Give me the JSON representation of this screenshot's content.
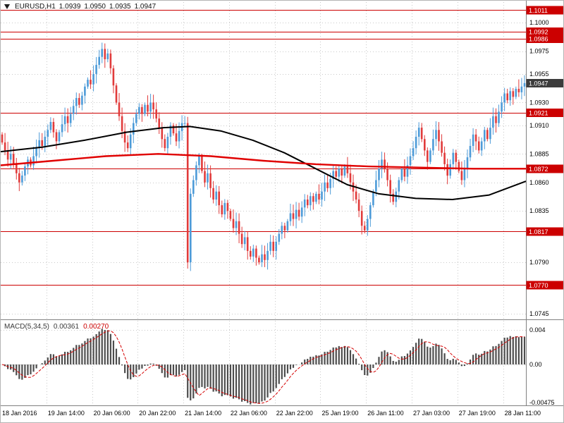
{
  "header": {
    "symbol_period": "EURUSD,H1",
    "open": "1.0939",
    "high": "1.0950",
    "low": "1.0935",
    "close": "1.0947"
  },
  "indicator": {
    "name": "MACD(5,34,5)",
    "value_main": "0.00361",
    "value_signal": "0.00270"
  },
  "colors": {
    "up_candle": "#4d9bd8",
    "down_candle": "#e13b3b",
    "ma_red": "#e00000",
    "ma_black": "#000000",
    "level_line": "#cc0000",
    "level_tag_bg": "#cc0000",
    "current_tag_bg": "#3c3c3c",
    "macd_bar": "#4d4d4d",
    "macd_signal": "#d40000",
    "grid": "#c9c9c9",
    "pane_border": "#808080",
    "text": "#000000",
    "background": "#ffffff"
  },
  "chart_data": {
    "type": "candlestick",
    "symbol": "EURUSD",
    "timeframe": "H1",
    "grid": "dotted",
    "price_axis": {
      "visible_ticks": [
        {
          "label": "1.1000",
          "value": 1.1
        },
        {
          "label": "1.0975",
          "value": 1.0975
        },
        {
          "label": "1.0955",
          "value": 1.0955
        },
        {
          "label": "1.0930",
          "value": 1.093
        },
        {
          "label": "1.0910",
          "value": 1.091
        },
        {
          "label": "1.0885",
          "value": 1.0885
        },
        {
          "label": "1.0860",
          "value": 1.086
        },
        {
          "label": "1.0835",
          "value": 1.0835
        },
        {
          "label": "1.0790",
          "value": 1.079
        },
        {
          "label": "1.0745",
          "value": 1.0745
        }
      ],
      "range": [
        1.074,
        1.1018
      ]
    },
    "time_axis": [
      {
        "label": "18 Jan 2016",
        "index": 0
      },
      {
        "label": "19 Jan 14:00",
        "index": 16
      },
      {
        "label": "20 Jan 06:00",
        "index": 32
      },
      {
        "label": "20 Jan 22:00",
        "index": 48
      },
      {
        "label": "21 Jan 14:00",
        "index": 64
      },
      {
        "label": "22 Jan 06:00",
        "index": 80
      },
      {
        "label": "22 Jan 22:00",
        "index": 96
      },
      {
        "label": "25 Jan 19:00",
        "index": 112
      },
      {
        "label": "26 Jan 11:00",
        "index": 128
      },
      {
        "label": "27 Jan 03:00",
        "index": 144
      },
      {
        "label": "27 Jan 19:00",
        "index": 160
      },
      {
        "label": "28 Jan 11:00",
        "index": 176
      }
    ],
    "levels": [
      {
        "label": "1.1011",
        "value": 1.1011
      },
      {
        "label": "1.0992",
        "value": 1.0992
      },
      {
        "label": "1.0986",
        "value": 1.0986
      },
      {
        "label": "1.0921",
        "value": 1.0921
      },
      {
        "label": "1.0872",
        "value": 1.0872
      },
      {
        "label": "1.0817",
        "value": 1.0817
      },
      {
        "label": "1.0770",
        "value": 1.077
      }
    ],
    "current_price": {
      "label": "1.0947",
      "value": 1.0947
    },
    "first_open": 1.0902,
    "closes": [
      1.0895,
      1.0888,
      1.088,
      1.0885,
      1.0876,
      1.0868,
      1.086,
      1.0866,
      1.0874,
      1.088,
      1.0875,
      1.0883,
      1.089,
      1.0897,
      1.0892,
      1.09,
      1.0906,
      1.0913,
      1.0904,
      1.0896,
      1.0904,
      1.0911,
      1.0918,
      1.0912,
      1.092,
      1.0927,
      1.0934,
      1.0928,
      1.0936,
      1.0944,
      1.095,
      1.0946,
      1.0955,
      1.0963,
      1.097,
      1.0977,
      1.0968,
      1.0973,
      1.096,
      1.0945,
      1.093,
      1.0918,
      1.0905,
      1.0895,
      1.089,
      1.0902,
      1.0912,
      1.092,
      1.0926,
      1.092,
      1.0928,
      1.0922,
      1.093,
      1.0924,
      1.0916,
      1.0908,
      1.0898,
      1.089,
      1.09,
      1.091,
      1.0903,
      1.0896,
      1.0905,
      1.0912,
      1.0912,
      1.079,
      1.085,
      1.0862,
      1.0875,
      1.0883,
      1.087,
      1.086,
      1.0868,
      1.0855,
      1.0845,
      1.0852,
      1.084,
      1.0832,
      1.0842,
      1.0835,
      1.0828,
      1.082,
      1.0826,
      1.0815,
      1.0806,
      1.0812,
      1.08,
      1.0795,
      1.0802,
      1.0794,
      1.079,
      1.0797,
      1.0792,
      1.08,
      1.0808,
      1.08,
      1.0808,
      1.0815,
      1.0822,
      1.0818,
      1.0826,
      1.0833,
      1.0828,
      1.0836,
      1.083,
      1.0838,
      1.0845,
      1.084,
      1.0848,
      1.0843,
      1.085,
      1.0845,
      1.0852,
      1.086,
      1.0855,
      1.0863,
      1.087,
      1.0865,
      1.0872,
      1.0866,
      1.0874,
      1.0868,
      1.086,
      1.0852,
      1.0845,
      1.0835,
      1.0822,
      1.0818,
      1.0828,
      1.084,
      1.0852,
      1.0862,
      1.0872,
      1.088,
      1.0872,
      1.0862,
      1.085,
      1.0843,
      1.0852,
      1.0862,
      1.0872,
      1.0865,
      1.0875,
      1.0883,
      1.089,
      1.09,
      1.0908,
      1.0898,
      1.0888,
      1.0878,
      1.0888,
      1.0898,
      1.0906,
      1.0896,
      1.0886,
      1.0876,
      1.0866,
      1.0876,
      1.0886,
      1.0878,
      1.087,
      1.0862,
      1.0872,
      1.0882,
      1.0892,
      1.0902,
      1.0896,
      1.0888,
      1.0896,
      1.0906,
      1.0898,
      1.0908,
      1.0918,
      1.0912,
      1.0922,
      1.093,
      1.0938,
      1.0932,
      1.094,
      1.0935,
      1.0942,
      1.0939,
      1.0944,
      1.0947
    ],
    "ma_red_points": [
      [
        0.0,
        1.0875
      ],
      [
        0.1,
        1.0879
      ],
      [
        0.2,
        1.0883
      ],
      [
        0.3,
        1.0885
      ],
      [
        0.4,
        1.0883
      ],
      [
        0.5,
        1.0879
      ],
      [
        0.6,
        1.0876
      ],
      [
        0.7,
        1.0874
      ],
      [
        0.8,
        1.0873
      ],
      [
        0.9,
        1.0872
      ],
      [
        1.0,
        1.0872
      ]
    ],
    "ma_black_points": [
      [
        0.0,
        1.0887
      ],
      [
        0.08,
        1.0891
      ],
      [
        0.16,
        1.0897
      ],
      [
        0.24,
        1.0904
      ],
      [
        0.31,
        1.0908
      ],
      [
        0.36,
        1.0909
      ],
      [
        0.42,
        1.0905
      ],
      [
        0.48,
        1.0897
      ],
      [
        0.54,
        1.0886
      ],
      [
        0.6,
        1.0872
      ],
      [
        0.66,
        1.0858
      ],
      [
        0.72,
        1.085
      ],
      [
        0.79,
        1.0846
      ],
      [
        0.86,
        1.0845
      ],
      [
        0.93,
        1.0849
      ],
      [
        1.0,
        1.0861
      ]
    ],
    "macd": {
      "params": [
        5,
        34,
        5
      ],
      "axis_ticks": [
        {
          "label": "0.004",
          "value": 0.004
        },
        {
          "label": "0.00",
          "value": 0.0
        },
        {
          "label": "-0.00475",
          "value": -0.00475
        }
      ],
      "range": [
        -0.00475,
        0.005
      ]
    }
  }
}
